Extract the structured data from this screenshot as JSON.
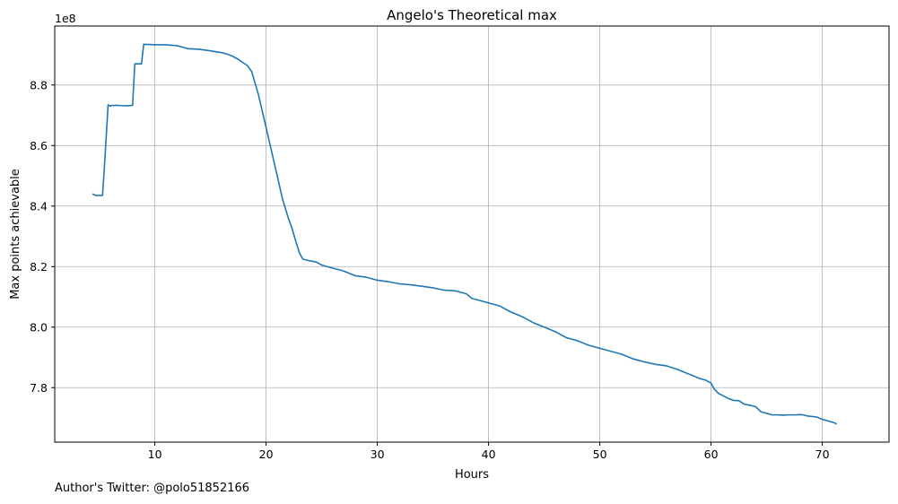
{
  "chart_data": {
    "type": "line",
    "title": "Angelo's Theoretical max",
    "xlabel": "Hours",
    "ylabel": "Max points achievable",
    "y_offset_label": "1e8",
    "xlim": [
      1,
      76
    ],
    "ylim": [
      7.62,
      8.995
    ],
    "x_ticks": [
      10,
      20,
      30,
      40,
      50,
      60,
      70
    ],
    "y_ticks": [
      7.8,
      8.0,
      8.2,
      8.4,
      8.6,
      8.8
    ],
    "grid": true,
    "line_color": "#1f77b4",
    "series": [
      {
        "x": [
          4.4,
          4.7,
          5.0,
          5.3,
          5.5,
          5.8,
          6.0,
          6.1,
          6.2,
          6.5,
          7.0,
          7.5,
          8.0,
          8.2,
          8.3,
          8.5,
          8.8,
          9.0,
          9.1,
          9.5,
          10.0,
          11.0,
          12.0,
          12.5,
          13.0,
          14.0,
          15.0,
          15.5,
          16.0,
          16.5,
          17.0,
          17.5,
          18.0,
          18.3,
          18.7,
          19.3,
          20.0,
          20.5,
          21.0,
          21.5,
          22.0,
          22.3,
          22.7,
          23.0,
          23.3,
          23.8,
          24.5,
          25.0,
          26.0,
          27.0,
          28.0,
          29.0,
          30.0,
          31.0,
          32.0,
          33.0,
          34.0,
          35.0,
          36.0,
          37.0,
          38.0,
          38.5,
          39.0,
          40.0,
          41.0,
          42.0,
          43.0,
          44.0,
          45.0,
          46.0,
          47.0,
          48.0,
          49.0,
          50.0,
          51.0,
          52.0,
          53.0,
          54.0,
          55.0,
          56.0,
          57.0,
          58.0,
          59.0,
          59.5,
          60.0,
          60.3,
          60.7,
          61.0,
          61.5,
          62.0,
          62.5,
          63.0,
          63.5,
          64.0,
          64.5,
          65.0,
          65.5,
          66.0,
          66.5,
          67.0,
          67.5,
          68.0,
          68.3,
          68.7,
          69.0,
          69.5,
          70.0,
          70.5,
          71.0,
          71.3
        ],
        "y": [
          8.44,
          8.435,
          8.435,
          8.435,
          8.55,
          8.735,
          8.73,
          8.733,
          8.732,
          8.733,
          8.732,
          8.731,
          8.733,
          8.87,
          8.87,
          8.87,
          8.87,
          8.935,
          8.934,
          8.934,
          8.933,
          8.933,
          8.93,
          8.925,
          8.92,
          8.918,
          8.913,
          8.91,
          8.907,
          8.902,
          8.895,
          8.885,
          8.872,
          8.865,
          8.845,
          8.77,
          8.66,
          8.58,
          8.5,
          8.42,
          8.36,
          8.33,
          8.28,
          8.245,
          8.225,
          8.22,
          8.215,
          8.205,
          8.195,
          8.185,
          8.17,
          8.165,
          8.155,
          8.15,
          8.143,
          8.14,
          8.135,
          8.13,
          8.122,
          8.12,
          8.11,
          8.095,
          8.09,
          8.08,
          8.07,
          8.05,
          8.035,
          8.015,
          8.0,
          7.985,
          7.965,
          7.955,
          7.94,
          7.93,
          7.92,
          7.91,
          7.895,
          7.885,
          7.877,
          7.872,
          7.86,
          7.845,
          7.83,
          7.825,
          7.815,
          7.795,
          7.78,
          7.775,
          7.765,
          7.758,
          7.757,
          7.745,
          7.742,
          7.737,
          7.72,
          7.715,
          7.71,
          7.71,
          7.709,
          7.71,
          7.71,
          7.711,
          7.71,
          7.706,
          7.705,
          7.703,
          7.695,
          7.69,
          7.685,
          7.68
        ]
      }
    ]
  },
  "footer": {
    "twitter_credit": "Author's Twitter: @polo51852166"
  }
}
